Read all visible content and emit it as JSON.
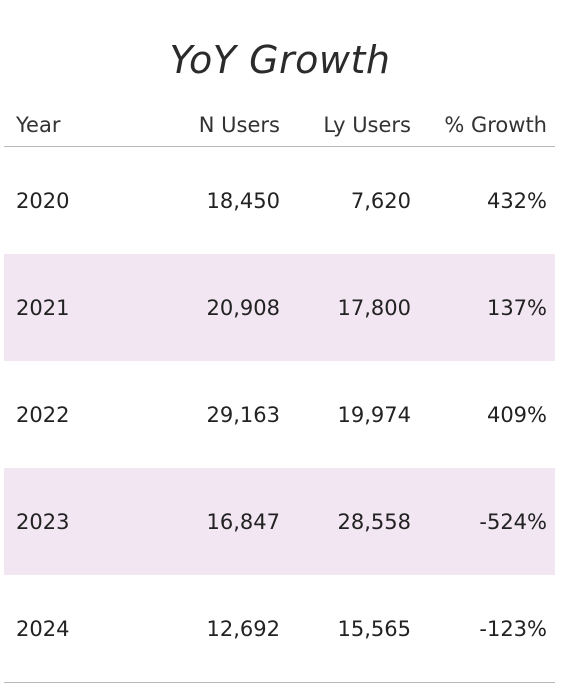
{
  "chart_data": {
    "type": "table",
    "title": "YoY Growth",
    "columns": [
      "Year",
      "N Users",
      "Ly Users",
      "% Growth"
    ],
    "rows": [
      [
        "2020",
        "18,450",
        "7,620",
        "432%"
      ],
      [
        "2021",
        "20,908",
        "17,800",
        "137%"
      ],
      [
        "2022",
        "29,163",
        "19,974",
        "409%"
      ],
      [
        "2023",
        "16,847",
        "28,558",
        "-524%"
      ],
      [
        "2024",
        "12,692",
        "15,565",
        "-123%"
      ]
    ],
    "colors": {
      "stripe": "#f1e6f1",
      "rule": "#b8b8b8"
    }
  }
}
